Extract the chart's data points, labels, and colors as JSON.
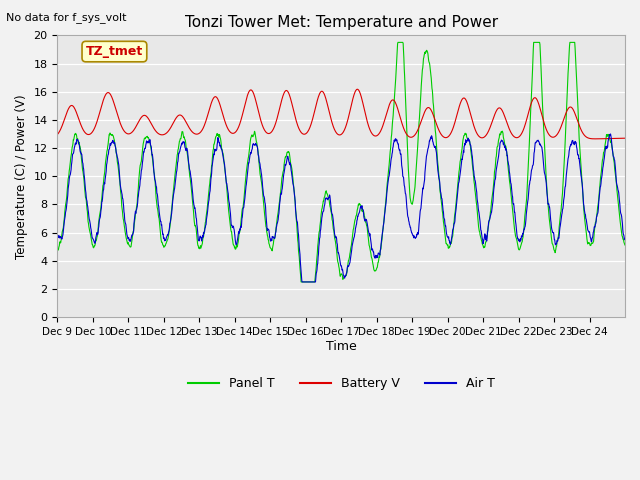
{
  "title": "Tonzi Tower Met: Temperature and Power",
  "top_left_text": "No data for f_sys_volt",
  "xlabel": "Time",
  "ylabel": "Temperature (C) / Power (V)",
  "ylim": [
    0,
    20
  ],
  "yticks": [
    0,
    2,
    4,
    6,
    8,
    10,
    12,
    14,
    16,
    18,
    20
  ],
  "xtick_labels": [
    "Dec 9",
    "Dec 10",
    "Dec 11",
    "Dec 12",
    "Dec 13",
    "Dec 14",
    "Dec 15",
    "Dec 16",
    "Dec 17",
    "Dec 18",
    "Dec 19",
    "Dec 20",
    "Dec 21",
    "Dec 22",
    "Dec 23",
    "Dec 24"
  ],
  "bg_color": "#e8e8e8",
  "fig_color": "#f2f2f2",
  "annotation_text": "TZ_tmet",
  "annotation_color": "#cc0000",
  "annotation_bg": "#ffffcc",
  "line_green": "#00cc00",
  "line_red": "#dd0000",
  "line_blue": "#0000cc",
  "legend_labels": [
    "Panel T",
    "Battery V",
    "Air T"
  ],
  "legend_colors": [
    "#00cc00",
    "#dd0000",
    "#0000cc"
  ]
}
